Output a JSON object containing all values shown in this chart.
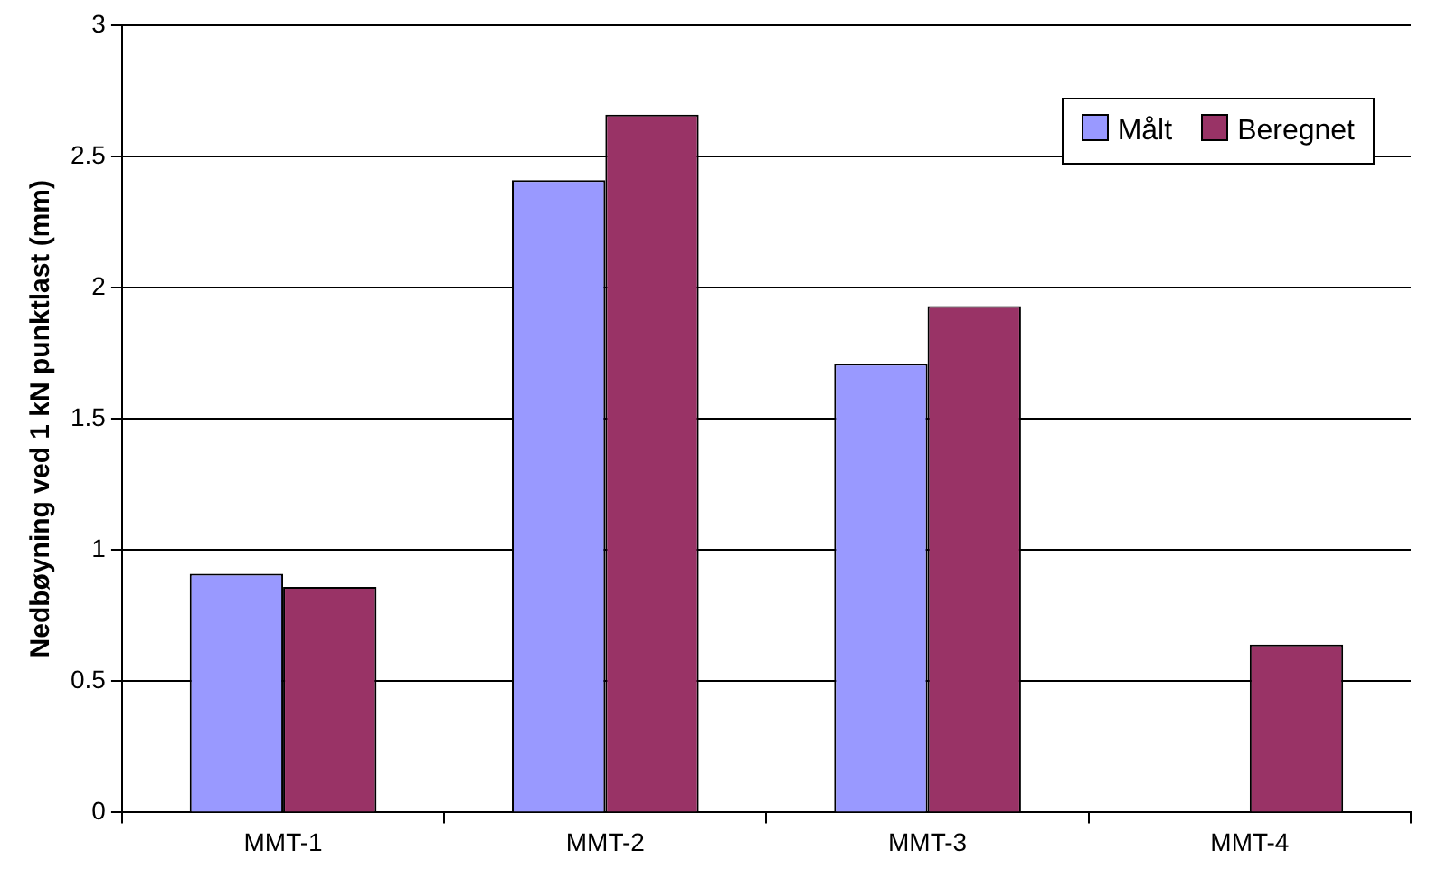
{
  "chart_data": {
    "type": "bar",
    "ylabel": "Nedbøyning ved 1 kN punktlast (mm)",
    "categories": [
      "MMT-1",
      "MMT-2",
      "MMT-3",
      "MMT-4"
    ],
    "series": [
      {
        "name": "Målt",
        "color": "#9999ff",
        "values": [
          0.91,
          2.41,
          1.71,
          null
        ]
      },
      {
        "name": "Beregnet",
        "color": "#993366",
        "values": [
          0.86,
          2.66,
          1.93,
          0.64
        ]
      }
    ],
    "ylim": [
      0,
      3
    ],
    "yticks": [
      0,
      0.5,
      1,
      1.5,
      2,
      2.5,
      3
    ],
    "grid": "y",
    "legend": "top right"
  }
}
